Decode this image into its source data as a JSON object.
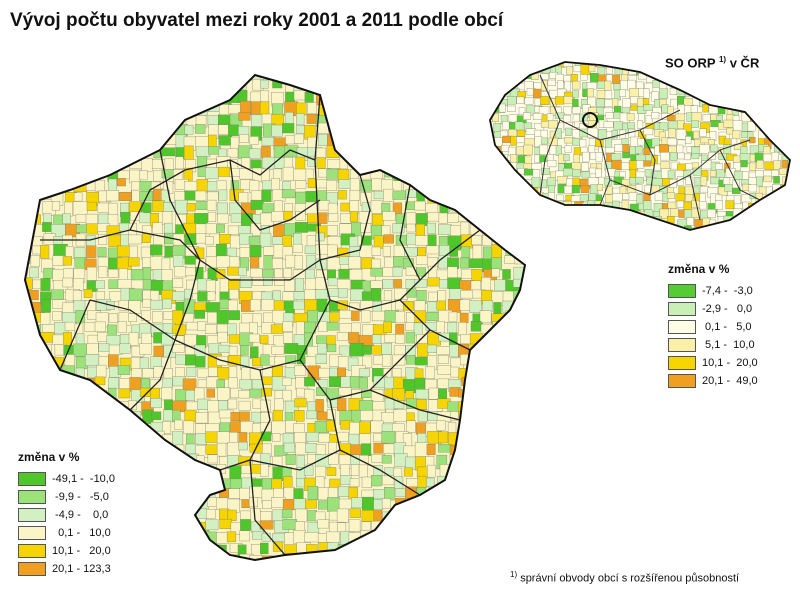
{
  "title": "Vývoj počtu obyvatel mezi roky 2001 a 2011 podle obcí",
  "inset": {
    "title_pre": "SO ORP",
    "title_sup": "1)",
    "title_post": "v ČR"
  },
  "legend_inset": {
    "title": "změna v %",
    "items": [
      {
        "label": "-7,4 -  -3,0",
        "color": "#55cc33"
      },
      {
        "label": "-2,9 -   0,0",
        "color": "#c8efb6"
      },
      {
        "label": " 0,1 -   5,0",
        "color": "#fffde6"
      },
      {
        "label": " 5,1 -  10,0",
        "color": "#faf0a8"
      },
      {
        "label": "10,1 -  20,0",
        "color": "#f5d400"
      },
      {
        "label": "20,1 -  49,0",
        "color": "#f0a020"
      }
    ]
  },
  "legend_main": {
    "title": "změna v %",
    "items": [
      {
        "label": "-49,1 -  -10,0",
        "color": "#4fc72a"
      },
      {
        "label": " -9,9 -   -5,0",
        "color": "#9be27a"
      },
      {
        "label": " -4,9 -    0,0",
        "color": "#d3f0c3"
      },
      {
        "label": "  0,1 -   10,0",
        "color": "#fbf4c6"
      },
      {
        "label": "10,1 -   20,0",
        "color": "#f5d400"
      },
      {
        "label": "20,1 - 123,3",
        "color": "#f0a020"
      }
    ]
  },
  "footnote": {
    "sup": "1)",
    "text": "správní obvody obcí s rozšířenou působností"
  }
}
